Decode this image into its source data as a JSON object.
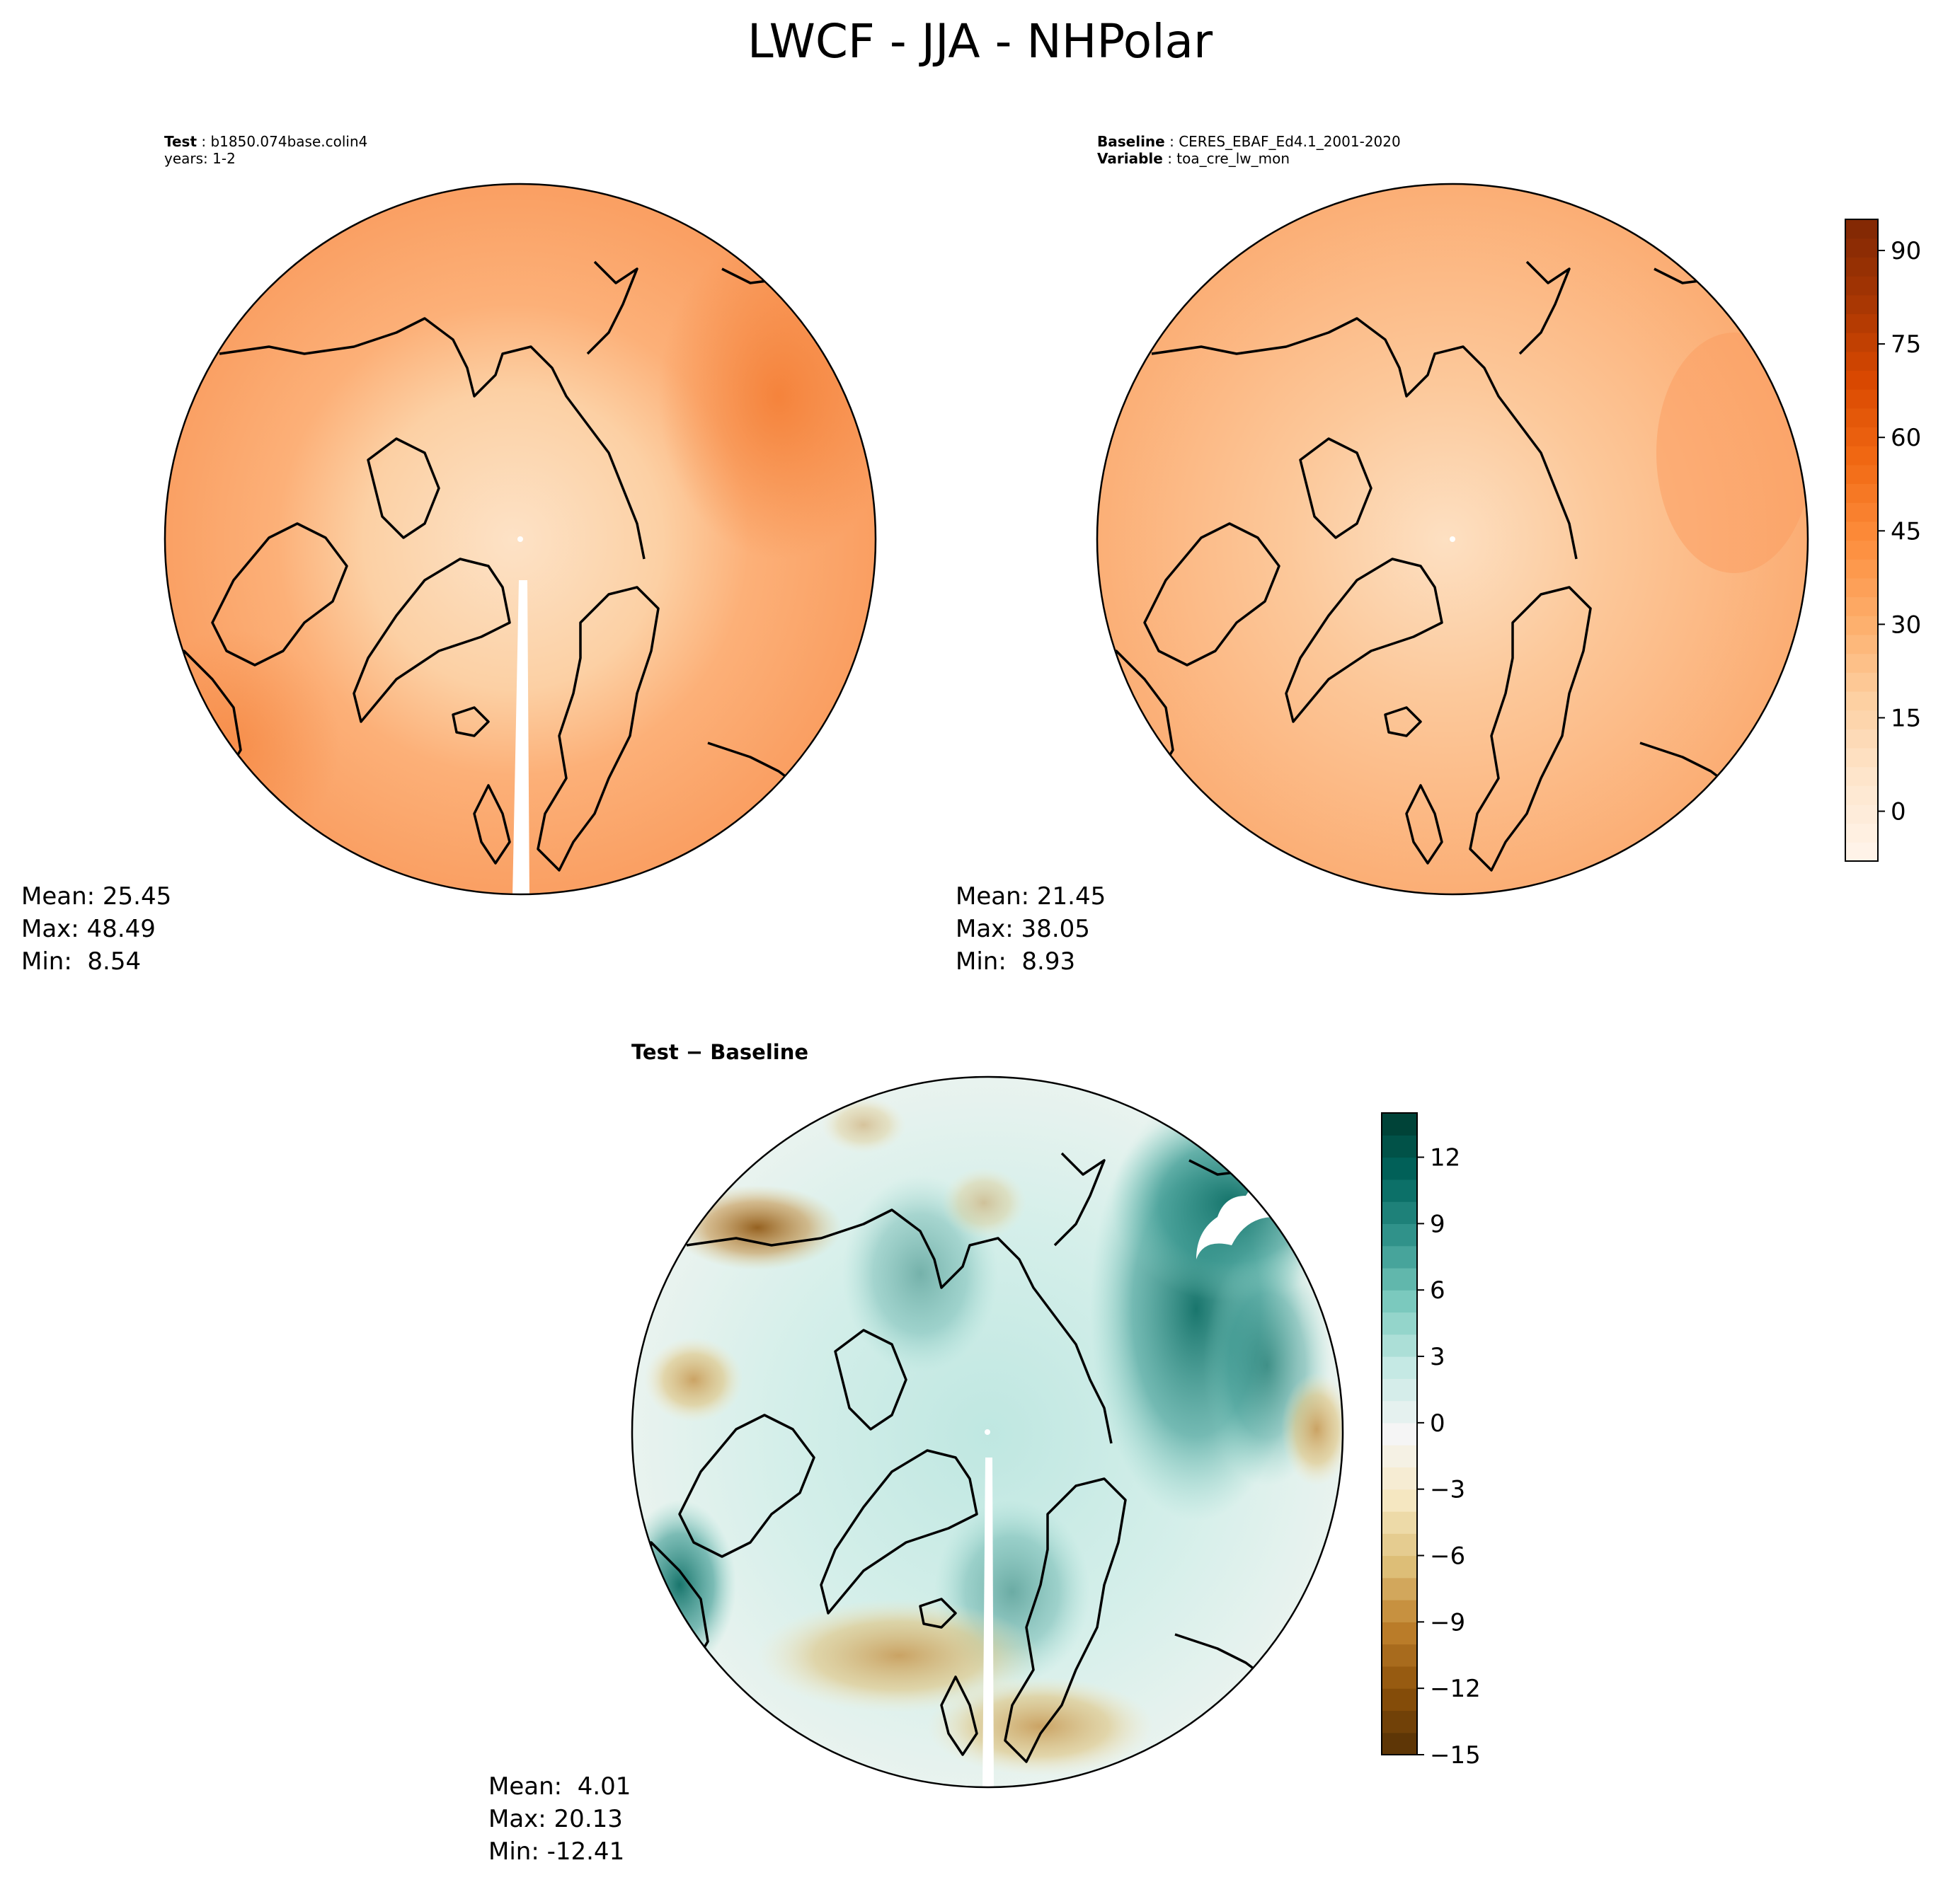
{
  "figure": {
    "title": "LWCF - JJA - NHPolar"
  },
  "panels": {
    "test": {
      "label_key": "Test",
      "label_value": "b1850.074base.colin4",
      "years": "years: 1-2",
      "stats": {
        "mean": "Mean: 25.45",
        "max": "Max: 48.49",
        "min": "Min:  8.54"
      }
    },
    "baseline": {
      "label_key": "Baseline",
      "label_value": "CERES_EBAF_Ed4.1_2001-2020",
      "variable_key": "Variable",
      "variable_value": "toa_cre_lw_mon",
      "stats": {
        "mean": "Mean: 21.45",
        "max": "Max: 38.05",
        "min": "Min:  8.93"
      }
    },
    "difference": {
      "title": "Test − Baseline",
      "stats": {
        "mean": "Mean:  4.01",
        "max": "Max: 20.13",
        "min": "Min: -12.41"
      }
    }
  },
  "chart_data": [
    {
      "type": "heatmap",
      "name": "Test",
      "projection": "north-polar-stereographic",
      "colormap": "Oranges",
      "mean": 25.45,
      "max": 48.49,
      "min": 8.54
    },
    {
      "type": "heatmap",
      "name": "Baseline",
      "projection": "north-polar-stereographic",
      "colormap": "Oranges",
      "mean": 21.45,
      "max": 38.05,
      "min": 8.93,
      "colorbar": {
        "range": [
          -8,
          95
        ],
        "ticks": [
          "0",
          "15",
          "30",
          "45",
          "60",
          "75",
          "90"
        ],
        "tick_values": [
          0,
          15,
          30,
          45,
          60,
          75,
          90
        ],
        "colors": [
          "#fff5eb",
          "#fee6ce",
          "#fdd0a2",
          "#fdae6b",
          "#fd8d3c",
          "#f16913",
          "#d94801",
          "#a63603",
          "#7f2704"
        ]
      }
    },
    {
      "type": "heatmap",
      "name": "Test - Baseline",
      "projection": "north-polar-stereographic",
      "colormap": "BrBG",
      "mean": 4.01,
      "max": 20.13,
      "min": -12.41,
      "colorbar": {
        "range": [
          -15,
          14
        ],
        "ticks": [
          "−15",
          "−12",
          "−9",
          "−6",
          "−3",
          "0",
          "3",
          "6",
          "9",
          "12"
        ],
        "tick_values": [
          -15,
          -12,
          -9,
          -6,
          -3,
          0,
          3,
          6,
          9,
          12
        ],
        "colors": [
          "#543005",
          "#8c510a",
          "#bf812d",
          "#dfc27d",
          "#f6e8c3",
          "#f5f5f5",
          "#c7eae5",
          "#80cdc1",
          "#35978f",
          "#01665e",
          "#003c30"
        ]
      }
    }
  ]
}
